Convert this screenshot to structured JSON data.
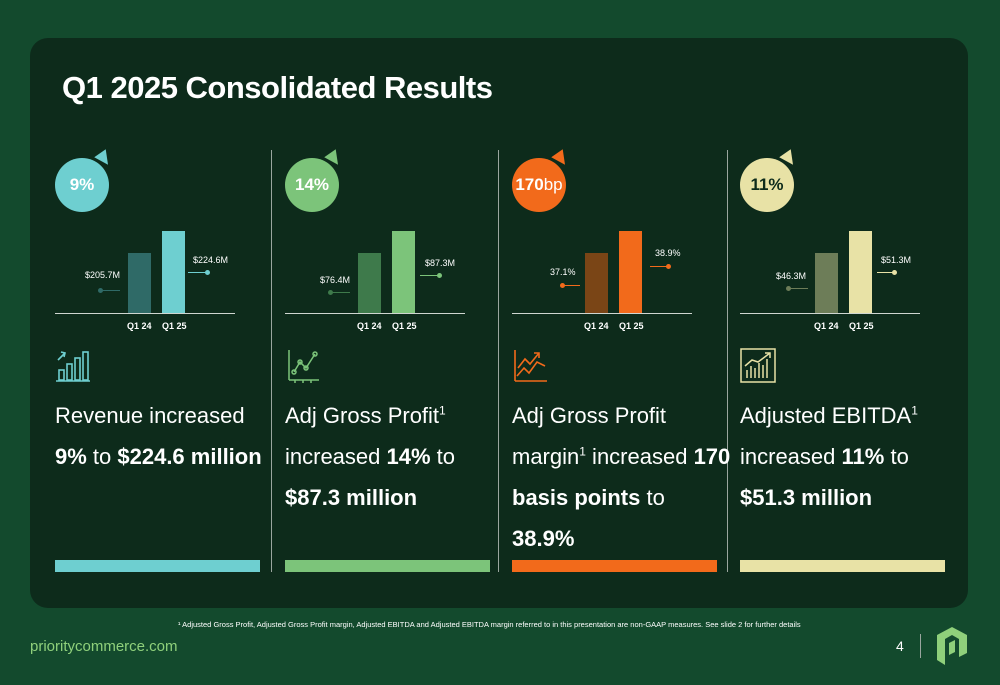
{
  "slide": {
    "title": "Q1 2025 Consolidated Results",
    "footnote": "¹ Adjusted Gross Profit, Adjusted Gross Profit margin, Adjusted EBITDA and Adjusted EBITDA margin referred to in this presentation are non-GAAP measures. See slide 2 for further details",
    "website": "prioritycommerce.com",
    "page_number": "4"
  },
  "colors": {
    "background": "#134a2d",
    "panel": "#0d2b1b",
    "revenue_light": "#6ecfd0",
    "revenue_dark": "#2f6a67",
    "gp_light": "#7cc47a",
    "gp_dark": "#3e7a4b",
    "margin_light": "#f26a1b",
    "margin_dark": "#7a4516",
    "ebitda_light": "#e8e2a6",
    "ebitda_dark": "#6d7d58"
  },
  "cards": [
    {
      "badge": "9%",
      "prev_value_label": "$205.7M",
      "cur_value_label": "$224.6M",
      "x_labels": [
        "Q1 24",
        "Q1 25"
      ],
      "icon": "bar-growth-icon",
      "desc_part1": "Revenue increased ",
      "desc_bold1": "9%",
      "desc_part2": " to ",
      "desc_bold2": "$224.6 million",
      "desc_sup": "",
      "desc_part3": "",
      "desc_tail": ""
    },
    {
      "badge": "14%",
      "prev_value_label": "$76.4M",
      "cur_value_label": "$87.3M",
      "x_labels": [
        "Q1 24",
        "Q1 25"
      ],
      "icon": "scatter-chart-icon",
      "desc_part1": "Adj Gross Profit",
      "desc_sup": "1",
      "desc_part2": " increased ",
      "desc_bold1": "14%",
      "desc_part3": " to ",
      "desc_bold2": "$87.3 million",
      "desc_tail": ""
    },
    {
      "badge_bold": "170",
      "badge_rest": "bp",
      "prev_value_label": "37.1%",
      "cur_value_label": "38.9%",
      "x_labels": [
        "Q1 24",
        "Q1 25"
      ],
      "icon": "trend-up-icon",
      "desc_part1": "Adj Gross Profit margin",
      "desc_sup": "1",
      "desc_part2": " increased ",
      "desc_bold1": "170 basis points",
      "desc_part3": " to ",
      "desc_bold2": "38.9%",
      "desc_tail": ""
    },
    {
      "badge": "11%",
      "prev_value_label": "$46.3M",
      "cur_value_label": "$51.3M",
      "x_labels": [
        "Q1 24",
        "Q1 25"
      ],
      "icon": "growth-bars-icon",
      "desc_part1": "Adjusted EBITDA",
      "desc_sup": "1",
      "desc_part2": " increased ",
      "desc_bold1": "11%",
      "desc_part3": " to ",
      "desc_bold2": "$51.3 million",
      "desc_tail": ""
    }
  ],
  "chart_data": [
    {
      "type": "bar",
      "categories": [
        "Q1 24",
        "Q1 25"
      ],
      "values": [
        205.7,
        224.6
      ],
      "ylim": [
        0,
        224.6
      ]
    },
    {
      "type": "bar",
      "categories": [
        "Q1 24",
        "Q1 25"
      ],
      "values": [
        76.4,
        87.3
      ],
      "ylim": [
        0,
        87.3
      ]
    },
    {
      "type": "bar",
      "categories": [
        "Q1 24",
        "Q1 25"
      ],
      "values": [
        37.1,
        38.9
      ],
      "ylim": [
        0,
        38.9
      ]
    },
    {
      "type": "bar",
      "categories": [
        "Q1 24",
        "Q1 25"
      ],
      "values": [
        46.3,
        51.3
      ],
      "ylim": [
        0,
        51.3
      ]
    }
  ]
}
